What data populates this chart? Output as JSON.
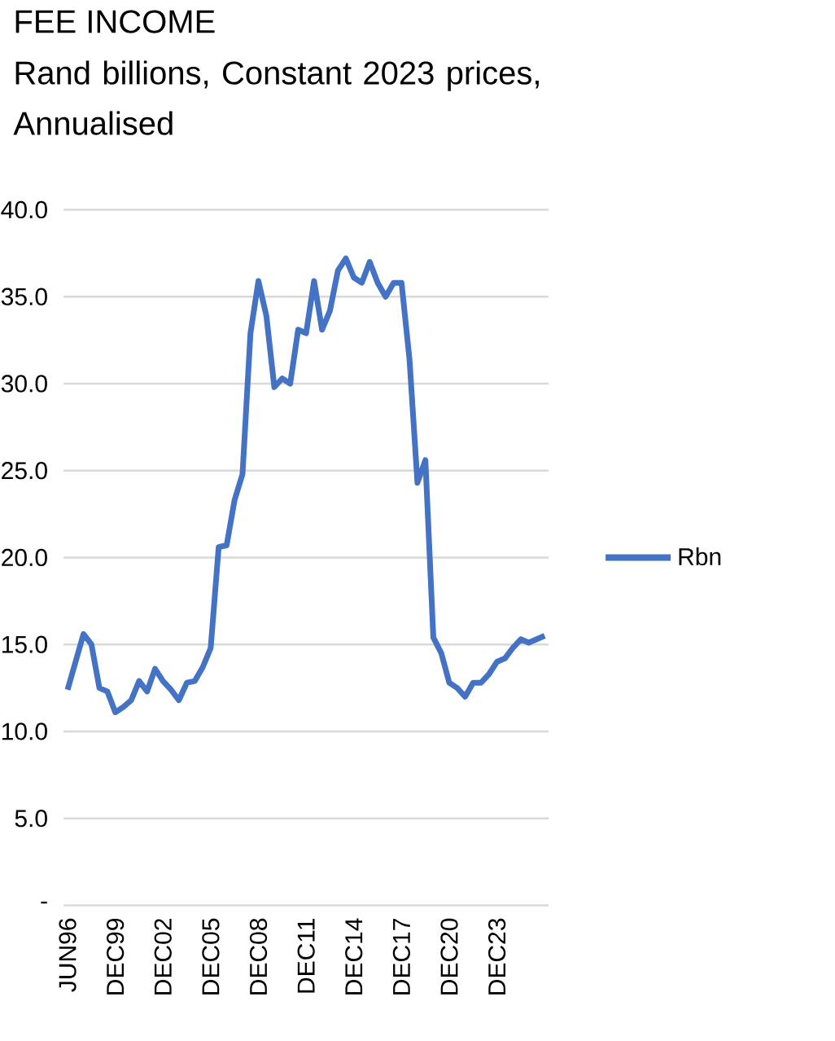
{
  "chart_data": {
    "type": "line",
    "title": "FEE INCOME",
    "subtitle": "Rand billions, Constant 2023 prices, Annualised",
    "categories": [
      "JUN96",
      null,
      null,
      null,
      null,
      null,
      "DEC99",
      null,
      null,
      null,
      null,
      null,
      "DEC02",
      null,
      null,
      null,
      null,
      null,
      "DEC05",
      null,
      null,
      null,
      null,
      null,
      "DEC08",
      null,
      null,
      null,
      null,
      null,
      "DEC11",
      null,
      null,
      null,
      null,
      null,
      "DEC14",
      null,
      null,
      null,
      null,
      null,
      "DEC17",
      null,
      null,
      null,
      null,
      null,
      "DEC20",
      null,
      null,
      null,
      null,
      null,
      "DEC23",
      null,
      null,
      null,
      null,
      null,
      null
    ],
    "series": [
      {
        "name": "Rbn",
        "color": "#4472c4",
        "values": [
          12.4,
          14.0,
          15.6,
          15.0,
          12.5,
          12.3,
          11.1,
          11.4,
          11.8,
          12.9,
          12.3,
          13.6,
          12.9,
          12.4,
          11.8,
          12.8,
          12.9,
          13.7,
          14.8,
          20.6,
          20.7,
          23.3,
          24.8,
          32.9,
          35.9,
          33.9,
          29.8,
          30.3,
          30.0,
          33.1,
          32.9,
          35.9,
          33.1,
          34.2,
          36.5,
          37.2,
          36.1,
          35.8,
          37.0,
          35.8,
          35.0,
          35.8,
          35.8,
          31.4,
          24.3,
          25.6,
          15.4,
          14.5,
          12.8,
          12.5,
          12.0,
          12.8,
          12.8,
          13.3,
          14.0,
          14.2,
          14.8,
          15.3,
          15.1,
          15.3,
          15.5
        ]
      }
    ],
    "ylim": [
      0,
      40
    ],
    "yticks": [
      {
        "value": 0,
        "label": "-"
      },
      {
        "value": 5,
        "label": "5.0"
      },
      {
        "value": 10,
        "label": "10.0"
      },
      {
        "value": 15,
        "label": "15.0"
      },
      {
        "value": 20,
        "label": "20.0"
      },
      {
        "value": 25,
        "label": "25.0"
      },
      {
        "value": 30,
        "label": "30.0"
      },
      {
        "value": 35,
        "label": "35.0"
      },
      {
        "value": 40,
        "label": "40.0"
      }
    ],
    "grid": "y",
    "legend": "right"
  }
}
